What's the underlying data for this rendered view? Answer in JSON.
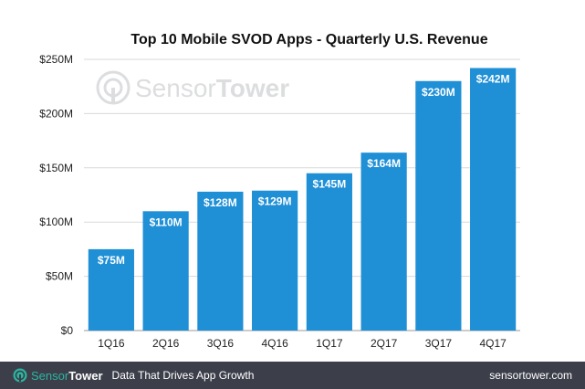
{
  "chart_data": {
    "type": "bar",
    "title": "Top 10 Mobile SVOD Apps - Quarterly U.S. Revenue",
    "xlabel": "",
    "ylabel": "",
    "categories": [
      "1Q16",
      "2Q16",
      "3Q16",
      "4Q16",
      "1Q17",
      "2Q17",
      "3Q17",
      "4Q17"
    ],
    "values": [
      75,
      110,
      128,
      129,
      145,
      164,
      230,
      242
    ],
    "data_labels": [
      "$75M",
      "$110M",
      "$128M",
      "$129M",
      "$145M",
      "$164M",
      "$230M",
      "$242M"
    ],
    "ylim": [
      0,
      250
    ],
    "y_ticks": [
      0,
      50,
      100,
      150,
      200,
      250
    ],
    "y_tick_labels": [
      "$0",
      "$50M",
      "$100M",
      "$150M",
      "$200M",
      "$250M"
    ],
    "bar_color": "#1f8fd6",
    "grid": true,
    "legend": "none"
  },
  "watermark": {
    "brand_a": "Sensor",
    "brand_b": "Tower"
  },
  "footer": {
    "brand_a": "Sensor",
    "brand_b": "Tower",
    "tagline": "Data That Drives App Growth",
    "url": "sensortower.com",
    "accent": "#2bb5a0",
    "background": "#3c3f4a"
  }
}
